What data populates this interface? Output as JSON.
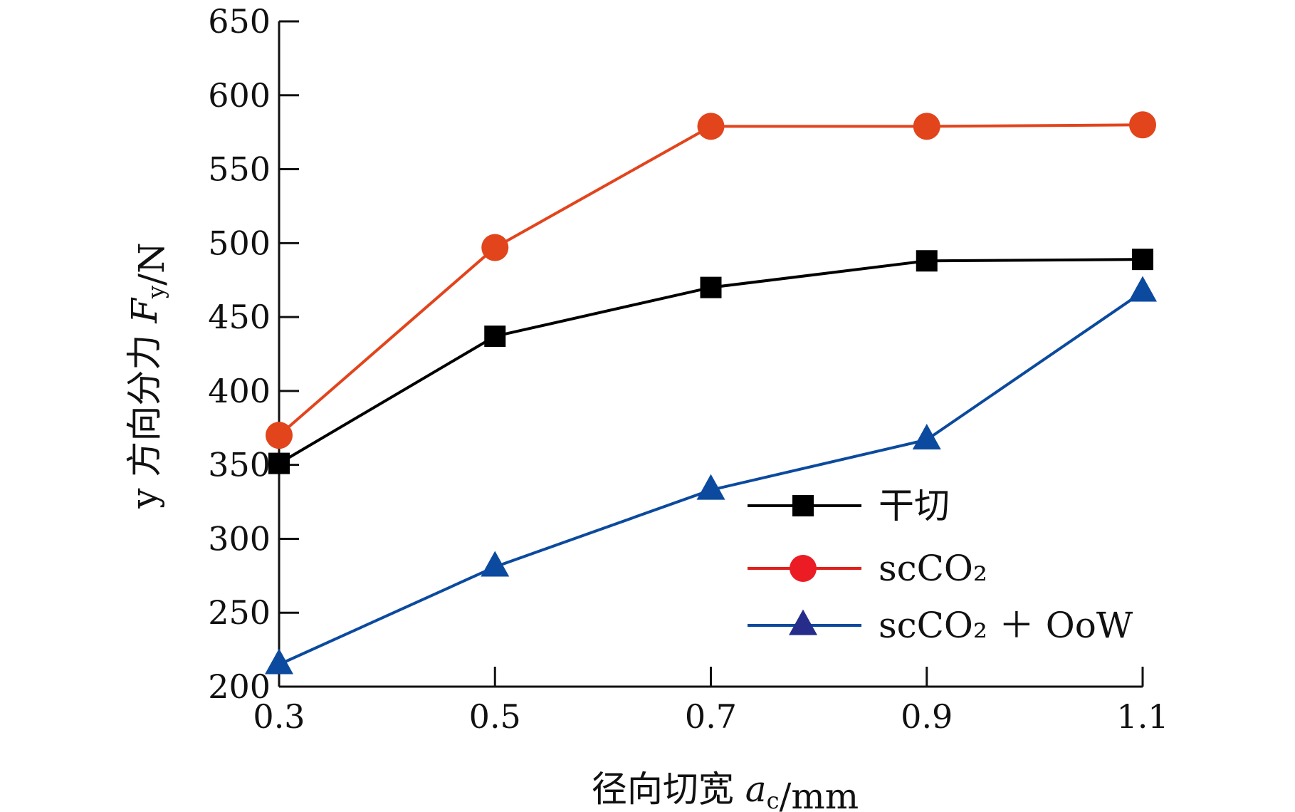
{
  "chart_data": {
    "type": "line",
    "xlabel": "径向切宽 a_c/mm",
    "ylabel": "y 方向分力 F_y/N",
    "x": [
      0.3,
      0.5,
      0.7,
      0.9,
      1.1
    ],
    "x_tick_labels": [
      "0.3",
      "0.5",
      "0.7",
      "0.9",
      "1.1"
    ],
    "y_ticks": [
      200,
      250,
      300,
      350,
      400,
      450,
      500,
      550,
      600,
      650
    ],
    "xlim": [
      0.3,
      1.1
    ],
    "ylim": [
      200,
      650
    ],
    "grid": false,
    "legend_position": "bottom-right",
    "series": [
      {
        "name": "干切",
        "values": [
          351,
          437,
          470,
          488,
          489
        ],
        "color": "#000000",
        "marker": "square",
        "marker_color": "#000000"
      },
      {
        "name": "scCO₂",
        "values": [
          370,
          497,
          579,
          579,
          580
        ],
        "color": "#e2441c",
        "marker": "circle",
        "marker_color": "#e2441c",
        "legend_line_color": "#e0201b",
        "legend_marker_color": "#ec1c24"
      },
      {
        "name": "scCO₂ ＋ OoW",
        "values": [
          215,
          281,
          333,
          367,
          467
        ],
        "color": "#0b4a9e",
        "marker": "triangle",
        "marker_color": "#0b4a9e",
        "legend_marker_color": "#262c8a"
      }
    ]
  }
}
